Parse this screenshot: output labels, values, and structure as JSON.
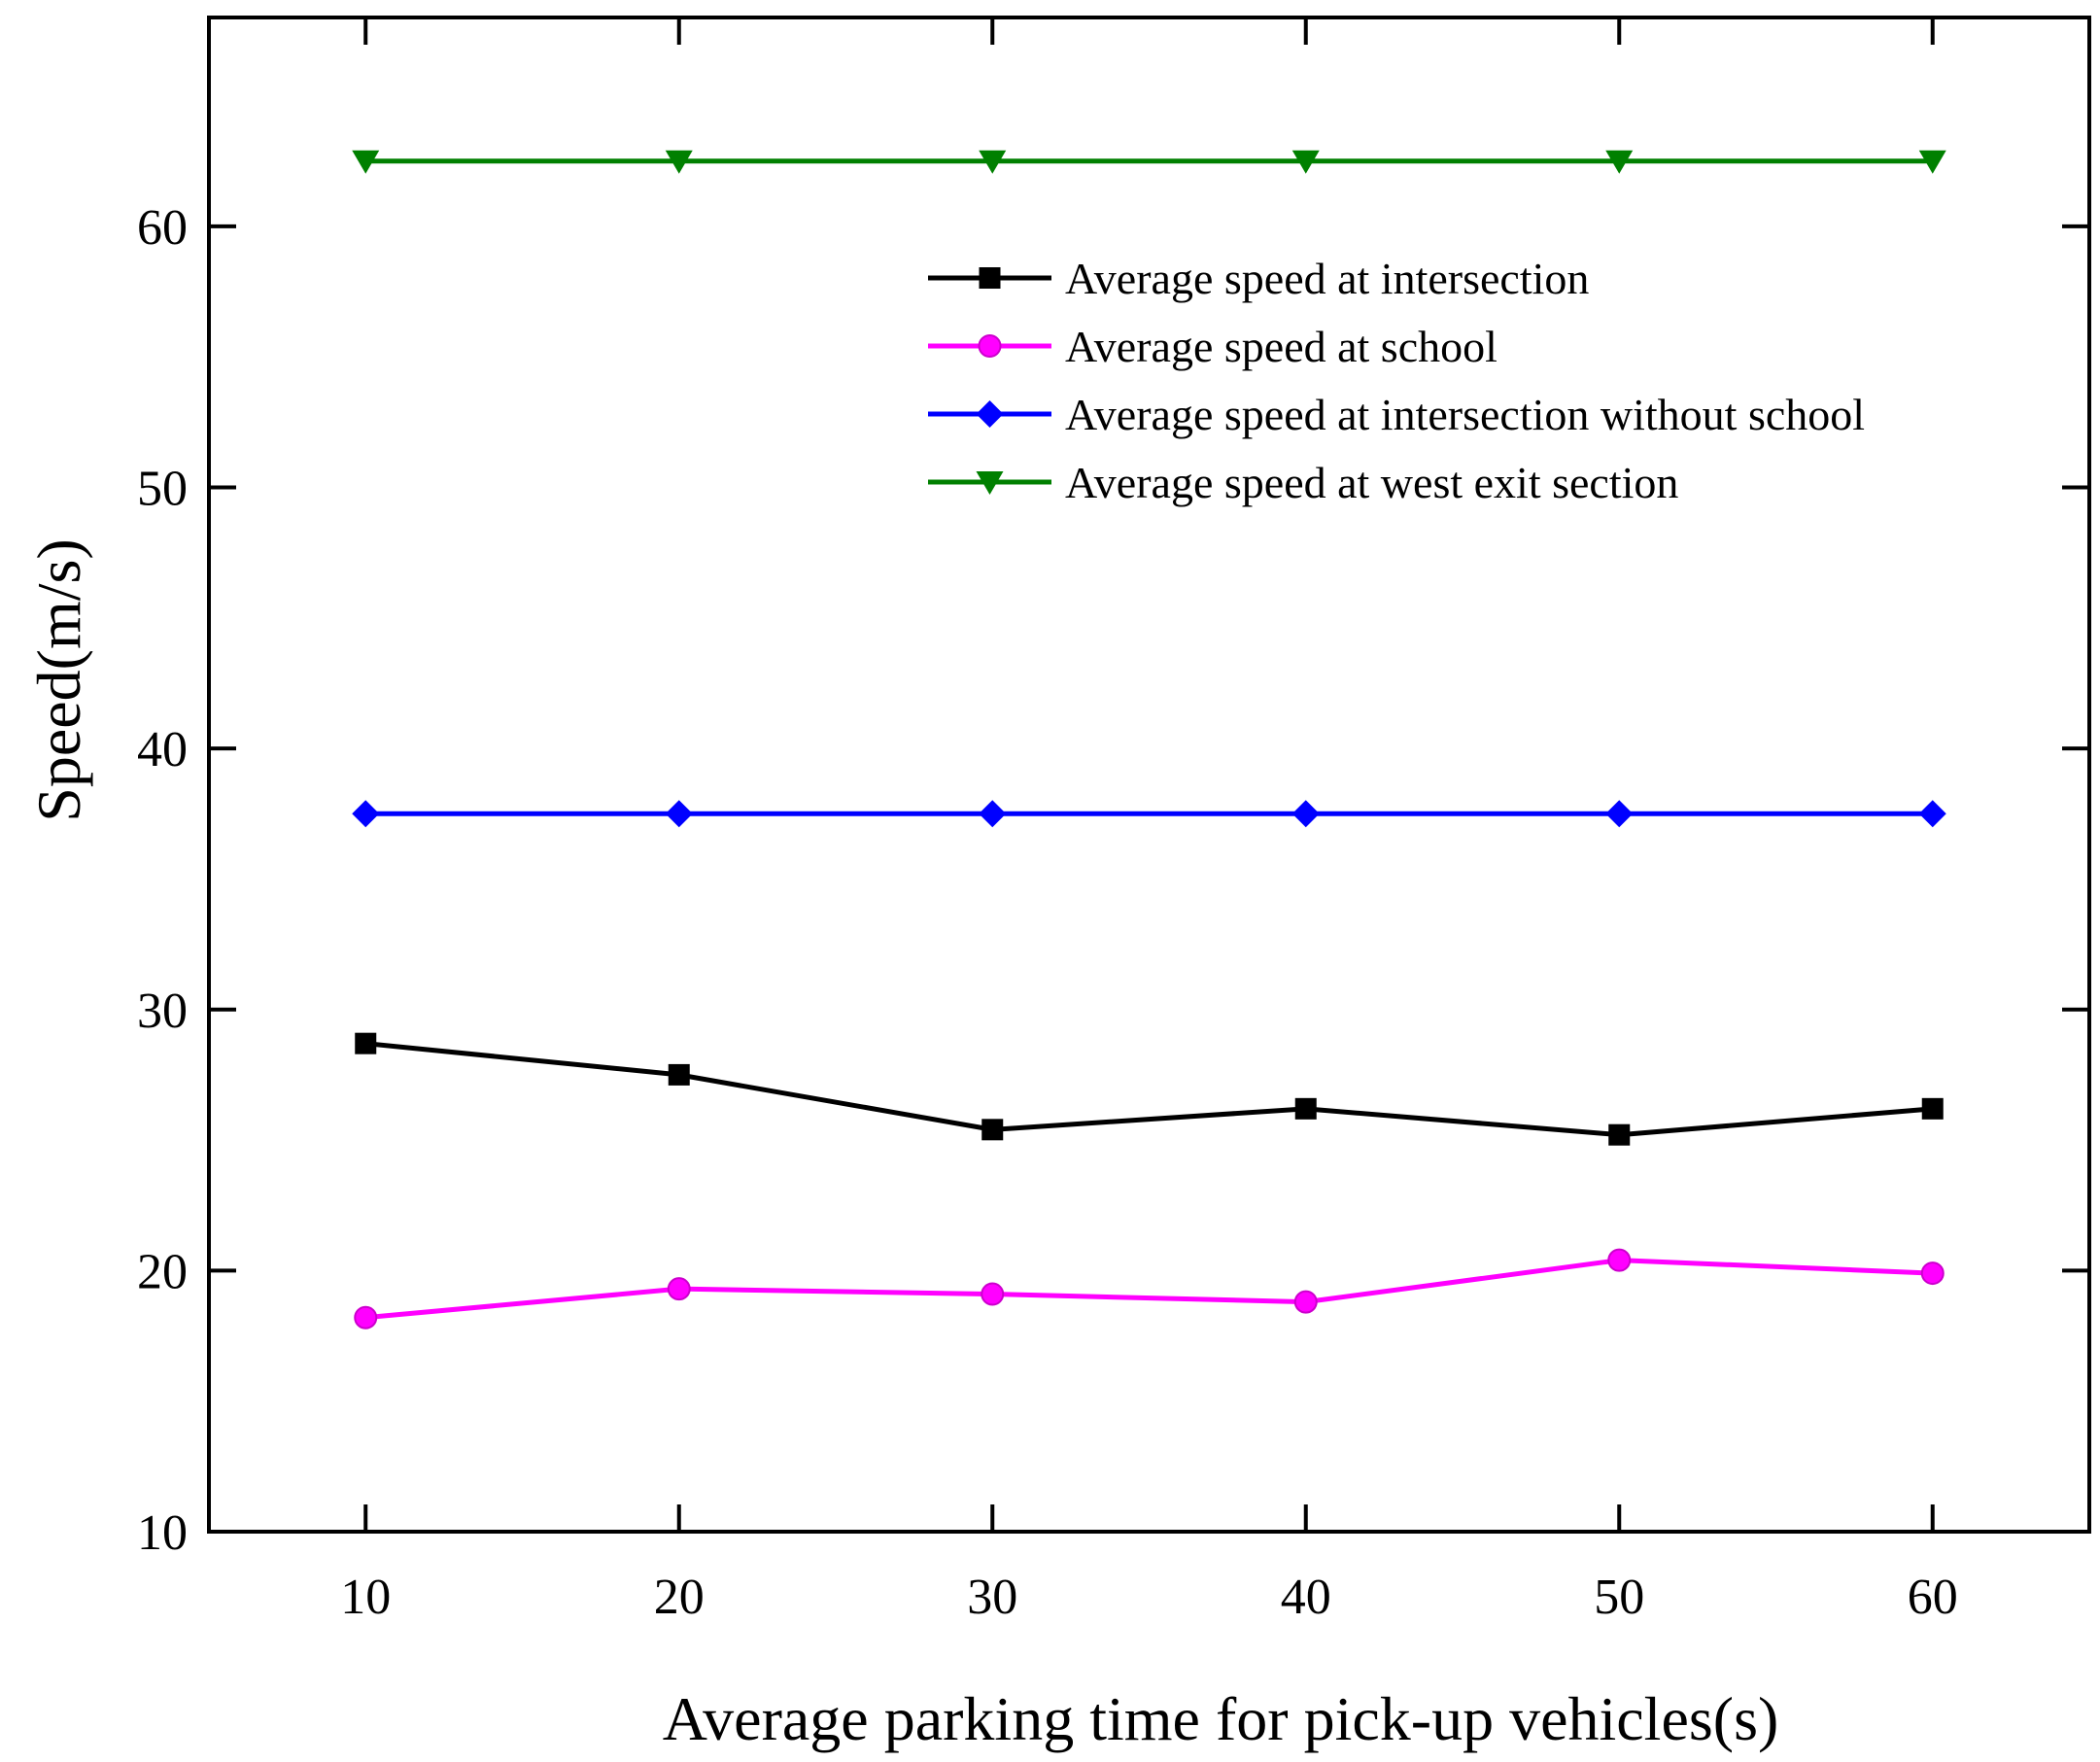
{
  "chart_data": {
    "type": "line",
    "title": "",
    "xlabel": "Average parking time for pick-up vehicles(s)",
    "ylabel": "Speed(m/s)",
    "x": [
      10,
      20,
      30,
      40,
      50,
      60
    ],
    "xlim": [
      5,
      65
    ],
    "ylim": [
      10,
      68
    ],
    "xticks": [
      10,
      20,
      30,
      40,
      50,
      60
    ],
    "yticks": [
      10,
      20,
      30,
      40,
      50,
      60
    ],
    "grid": false,
    "legend_position": "top-right",
    "series": [
      {
        "name": "Average speed at intersection",
        "color": "#000000",
        "marker": "square",
        "values": [
          28.7,
          27.5,
          25.4,
          26.2,
          25.2,
          26.2
        ]
      },
      {
        "name": "Average speed at school",
        "color": "#ff00ff",
        "marker": "circle",
        "values": [
          18.2,
          19.3,
          19.1,
          18.8,
          20.4,
          19.9
        ]
      },
      {
        "name": "Average speed at intersection without school",
        "color": "#0000ff",
        "marker": "diamond",
        "values": [
          37.5,
          37.5,
          37.5,
          37.5,
          37.5,
          37.5
        ]
      },
      {
        "name": "Average speed at west exit section",
        "color": "#008000",
        "marker": "triangle-down",
        "values": [
          62.5,
          62.5,
          62.5,
          62.5,
          62.5,
          62.5
        ]
      }
    ]
  }
}
